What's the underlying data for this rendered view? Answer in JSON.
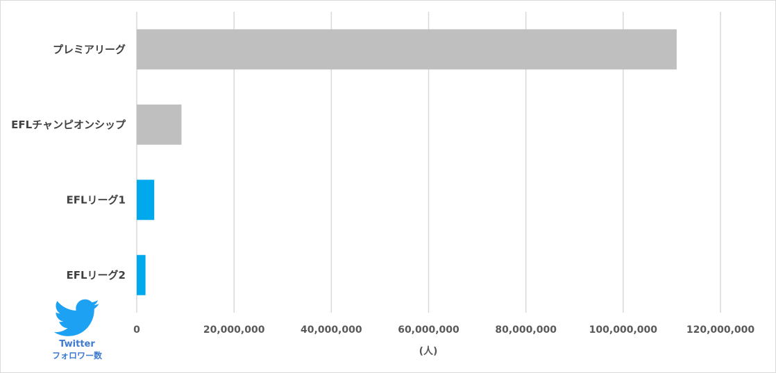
{
  "chart_data": {
    "type": "bar",
    "orientation": "horizontal",
    "categories": [
      "プレミアリーグ",
      "EFLチャンピオンシップ",
      "EFLリーグ1",
      "EFLリーグ2"
    ],
    "values": [
      111000000,
      9200000,
      3600000,
      1800000
    ],
    "bar_colors": [
      "#bfbfbf",
      "#bfbfbf",
      "#00a8ec",
      "#00a8ec"
    ],
    "xlim": [
      0,
      120000000
    ],
    "x_ticks": [
      "0",
      "20,000,000",
      "40,000,000",
      "60,000,000",
      "80,000,000",
      "100,000,000",
      "120,000,000"
    ],
    "x_tick_values": [
      0,
      20000000,
      40000000,
      60000000,
      80000000,
      100000000,
      120000000
    ],
    "xlabel": "(人)",
    "grid": true
  },
  "badge": {
    "icon": "twitter-bird-icon",
    "color": "#1da1f2",
    "line1": "Twitter",
    "line2": "フォロワー数"
  }
}
